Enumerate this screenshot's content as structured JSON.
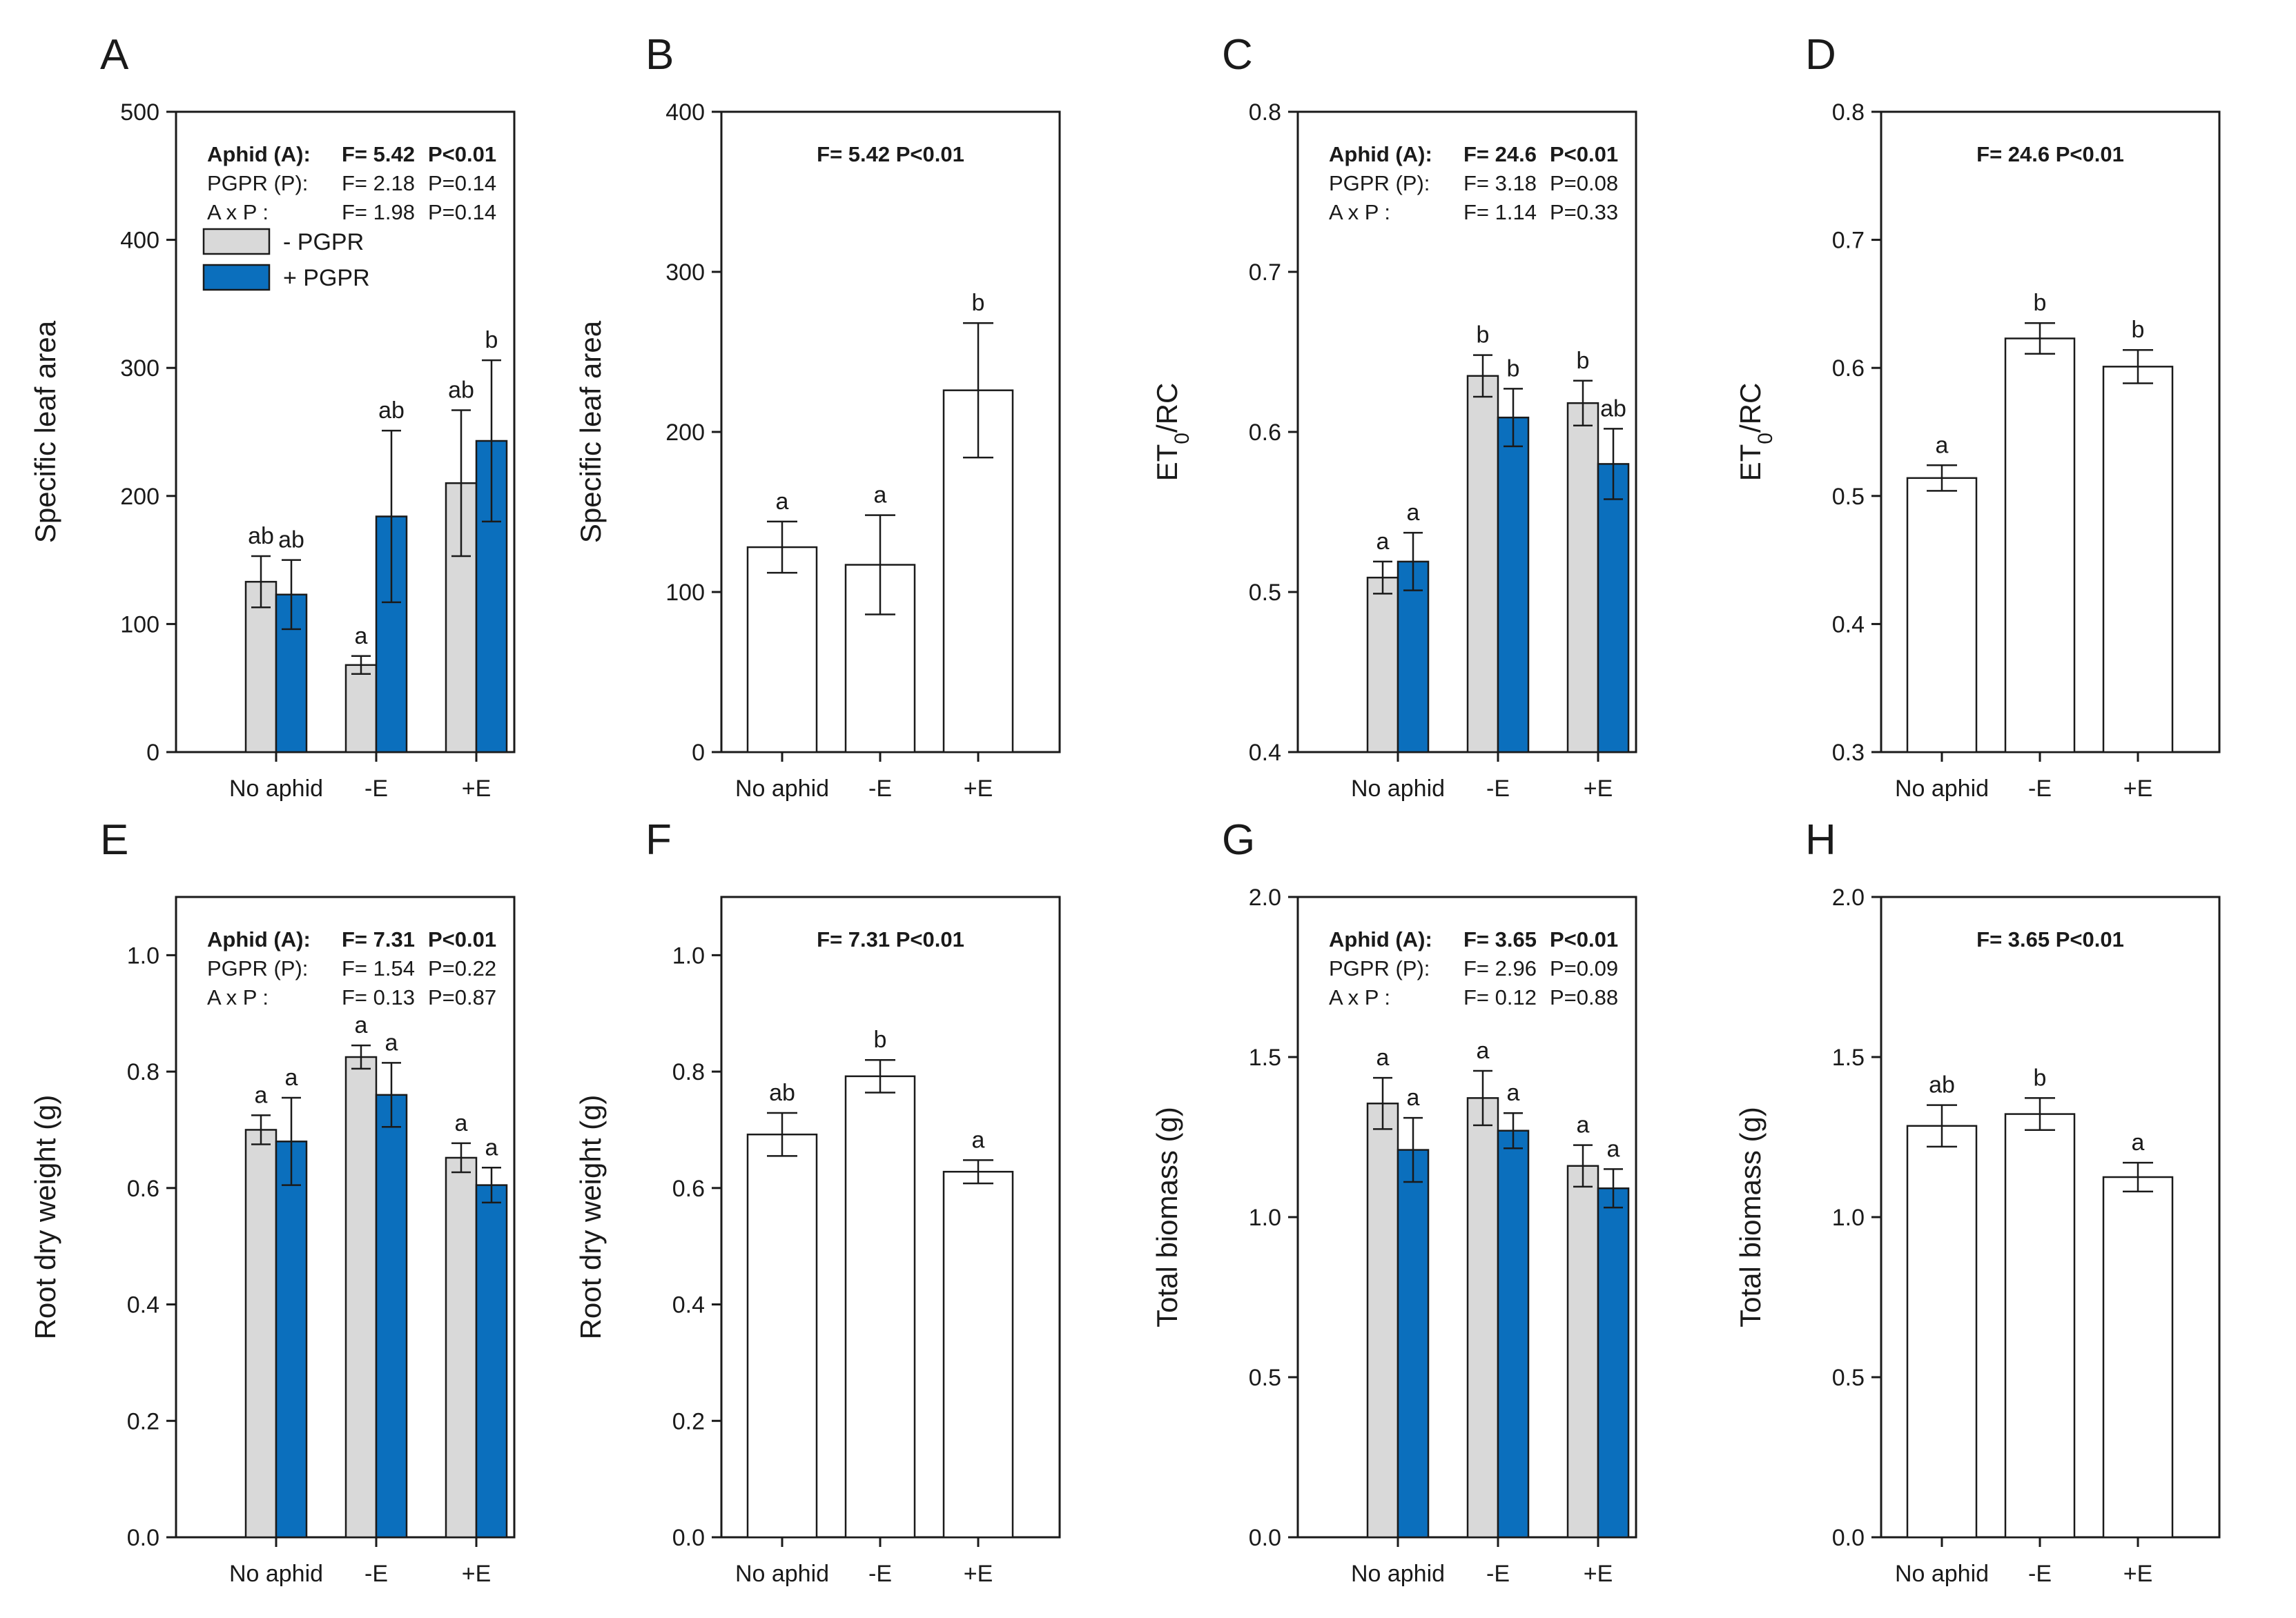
{
  "colors": {
    "minus_pgpr": "#d9d9d9",
    "plus_pgpr": "#0b6fbd",
    "single": "#ffffff",
    "axis": "#1a1a1a"
  },
  "legend": {
    "minus": "- PGPR",
    "plus": "+ PGPR"
  },
  "chart_data": [
    {
      "letter": "A",
      "type": "bar",
      "grouped": true,
      "ylabel": "Specific leaf area",
      "ylim": [
        0,
        500
      ],
      "yticks": [
        "0",
        "100",
        "200",
        "300",
        "400",
        "500"
      ],
      "categories": [
        "No aphid",
        "-E",
        "+E"
      ],
      "series": [
        {
          "name": "- PGPR",
          "values": [
            133,
            68,
            210
          ],
          "errors": [
            20,
            7,
            57
          ],
          "letters": [
            "ab",
            "a",
            "ab"
          ]
        },
        {
          "name": "+ PGPR",
          "values": [
            123,
            184,
            243
          ],
          "errors": [
            27,
            67,
            63
          ],
          "letters": [
            "ab",
            "ab",
            "b"
          ]
        }
      ],
      "stats": [
        {
          "label": "Aphid (A):",
          "f": "F= 5.42",
          "p": "P<0.01",
          "bold": true
        },
        {
          "label": "PGPR (P):",
          "f": "F= 2.18",
          "p": "P=0.14",
          "bold": false
        },
        {
          "label": "A x P       :",
          "f": "F= 1.98",
          "p": "P=0.14",
          "bold": false
        }
      ],
      "legend": true
    },
    {
      "letter": "B",
      "type": "bar",
      "grouped": false,
      "ylabel": "Specific leaf area",
      "ylim": [
        0,
        400
      ],
      "yticks": [
        "0",
        "100",
        "200",
        "300",
        "400"
      ],
      "categories": [
        "No aphid",
        "-E",
        "+E"
      ],
      "series": [
        {
          "name": "mean",
          "values": [
            128,
            117,
            226
          ],
          "errors": [
            16,
            31,
            42
          ],
          "letters": [
            "a",
            "a",
            "b"
          ]
        }
      ],
      "stats_line": "F= 5.42  P<0.01"
    },
    {
      "letter": "C",
      "type": "bar",
      "grouped": true,
      "ylabel_main": "ET",
      "ylabel_sub": "0",
      "ylabel_rest": "/RC",
      "ylim": [
        0.4,
        0.8
      ],
      "yticks": [
        "0.4",
        "0.5",
        "0.6",
        "0.7",
        "0.8"
      ],
      "categories": [
        "No aphid",
        "-E",
        "+E"
      ],
      "series": [
        {
          "name": "- PGPR",
          "values": [
            0.509,
            0.635,
            0.618
          ],
          "errors": [
            0.01,
            0.013,
            0.014
          ],
          "letters": [
            "a",
            "b",
            "b"
          ]
        },
        {
          "name": "+ PGPR",
          "values": [
            0.519,
            0.609,
            0.58
          ],
          "errors": [
            0.018,
            0.018,
            0.022
          ],
          "letters": [
            "a",
            "b",
            "ab"
          ]
        }
      ],
      "stats": [
        {
          "label": "Aphid (A):",
          "f": "F= 24.6",
          "p": "P<0.01",
          "bold": true
        },
        {
          "label": "PGPR (P):",
          "f": "F= 3.18",
          "p": "P=0.08",
          "bold": false
        },
        {
          "label": "A x P       :",
          "f": "F= 1.14",
          "p": "P=0.33",
          "bold": false
        }
      ]
    },
    {
      "letter": "D",
      "type": "bar",
      "grouped": false,
      "ylabel_main": "ET",
      "ylabel_sub": "0",
      "ylabel_rest": "/RC",
      "ylim": [
        0.3,
        0.8
      ],
      "yticks": [
        "0.3",
        "0.4",
        "0.5",
        "0.6",
        "0.7",
        "0.8"
      ],
      "categories": [
        "No aphid",
        "-E",
        "+E"
      ],
      "series": [
        {
          "name": "mean",
          "values": [
            0.514,
            0.623,
            0.601
          ],
          "errors": [
            0.01,
            0.012,
            0.013
          ],
          "letters": [
            "a",
            "b",
            "b"
          ]
        }
      ],
      "stats_line": "F= 24.6  P<0.01"
    },
    {
      "letter": "E",
      "type": "bar",
      "grouped": true,
      "ylabel": "Root dry weight (g)",
      "ylim": [
        0,
        1.1
      ],
      "yticks": [
        "0.0",
        "0.2",
        "0.4",
        "0.6",
        "0.8",
        "1.0"
      ],
      "categories": [
        "No aphid",
        "-E",
        "+E"
      ],
      "series": [
        {
          "name": "- PGPR",
          "values": [
            0.7,
            0.825,
            0.652
          ],
          "errors": [
            0.025,
            0.02,
            0.025
          ],
          "letters": [
            "a",
            "a",
            "a"
          ]
        },
        {
          "name": "+ PGPR",
          "values": [
            0.68,
            0.76,
            0.605
          ],
          "errors": [
            0.075,
            0.055,
            0.03
          ],
          "letters": [
            "a",
            "a",
            "a"
          ]
        }
      ],
      "stats": [
        {
          "label": "Aphid (A):",
          "f": "F= 7.31",
          "p": "P<0.01",
          "bold": true
        },
        {
          "label": "PGPR (P):",
          "f": "F= 1.54",
          "p": "P=0.22",
          "bold": false
        },
        {
          "label": "A x P       :",
          "f": "F= 0.13",
          "p": "P=0.87",
          "bold": false
        }
      ]
    },
    {
      "letter": "F",
      "type": "bar",
      "grouped": false,
      "ylabel": "Root dry weight (g)",
      "ylim": [
        0,
        1.1
      ],
      "yticks": [
        "0.0",
        "0.2",
        "0.4",
        "0.6",
        "0.8",
        "1.0"
      ],
      "categories": [
        "No aphid",
        "-E",
        "+E"
      ],
      "series": [
        {
          "name": "mean",
          "values": [
            0.692,
            0.792,
            0.628
          ],
          "errors": [
            0.037,
            0.028,
            0.02
          ],
          "letters": [
            "ab",
            "b",
            "a"
          ]
        }
      ],
      "stats_line": "F= 7.31  P<0.01"
    },
    {
      "letter": "G",
      "type": "bar",
      "grouped": true,
      "ylabel": "Total biomass (g)",
      "ylim": [
        0,
        2.0
      ],
      "yticks": [
        "0.0",
        "0.5",
        "1.0",
        "1.5",
        "2.0"
      ],
      "categories": [
        "No aphid",
        "-E",
        "+E"
      ],
      "series": [
        {
          "name": "- PGPR",
          "values": [
            1.355,
            1.372,
            1.16
          ],
          "errors": [
            0.08,
            0.085,
            0.065
          ],
          "letters": [
            "a",
            "a",
            "a"
          ]
        },
        {
          "name": "+ PGPR",
          "values": [
            1.21,
            1.27,
            1.09
          ],
          "errors": [
            0.1,
            0.055,
            0.06
          ],
          "letters": [
            "a",
            "a",
            "a"
          ]
        }
      ],
      "stats": [
        {
          "label": "Aphid (A):",
          "f": "F= 3.65",
          "p": "P<0.01",
          "bold": true
        },
        {
          "label": "PGPR (P):",
          "f": "F= 2.96",
          "p": "P=0.09",
          "bold": false
        },
        {
          "label": "A x P       :",
          "f": "F= 0.12",
          "p": "P=0.88",
          "bold": false
        }
      ]
    },
    {
      "letter": "H",
      "type": "bar",
      "grouped": false,
      "ylabel": "Total biomass (g)",
      "ylim": [
        0,
        2.0
      ],
      "yticks": [
        "0.0",
        "0.5",
        "1.0",
        "1.5",
        "2.0"
      ],
      "categories": [
        "No aphid",
        "-E",
        "+E"
      ],
      "series": [
        {
          "name": "mean",
          "values": [
            1.285,
            1.322,
            1.125
          ],
          "errors": [
            0.065,
            0.05,
            0.045
          ],
          "letters": [
            "ab",
            "b",
            "a"
          ]
        }
      ],
      "stats_line": "F= 3.65 P<0.01"
    }
  ]
}
